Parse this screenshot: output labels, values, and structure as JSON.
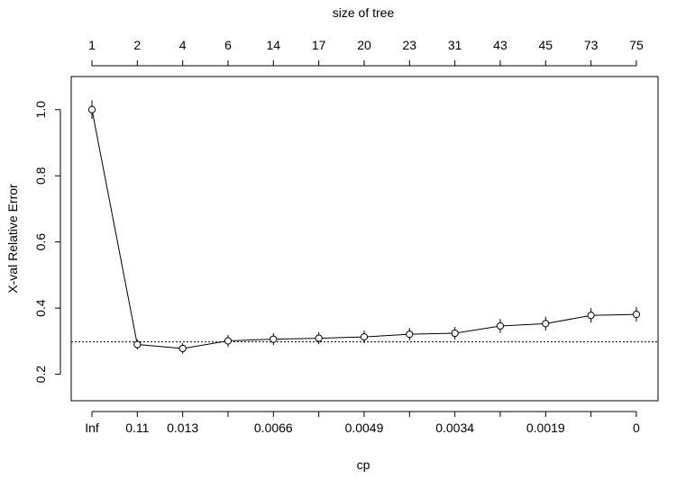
{
  "chart_data": {
    "type": "line",
    "xlabel": "cp",
    "ylabel": "X-val Relative Error",
    "top_axis_label": "size of tree",
    "x_index": [
      1,
      2,
      3,
      4,
      5,
      6,
      7,
      8,
      9,
      10,
      11,
      12,
      13
    ],
    "top_tick_labels": [
      "1",
      "2",
      "4",
      "6",
      "14",
      "17",
      "20",
      "23",
      "31",
      "43",
      "45",
      "73",
      "75"
    ],
    "bottom_tick_labels": [
      "Inf",
      "0.11",
      "0.013",
      "",
      "0.0066",
      "",
      "0.0049",
      "",
      "0.0034",
      "",
      "0.0019",
      "",
      "0"
    ],
    "y": [
      1.0,
      0.29,
      0.278,
      0.301,
      0.306,
      0.309,
      0.313,
      0.321,
      0.324,
      0.346,
      0.353,
      0.378,
      0.381
    ],
    "y_err": [
      0.028,
      0.015,
      0.016,
      0.018,
      0.018,
      0.018,
      0.019,
      0.019,
      0.019,
      0.021,
      0.021,
      0.022,
      0.022
    ],
    "reference_line": 0.298,
    "yticks": [
      0.2,
      0.4,
      0.6,
      0.8,
      1.0
    ],
    "ytick_labels": [
      "0.2",
      "0.4",
      "0.6",
      "0.8",
      "1.0"
    ],
    "ylim": [
      0.12,
      1.1
    ],
    "grid": false
  }
}
